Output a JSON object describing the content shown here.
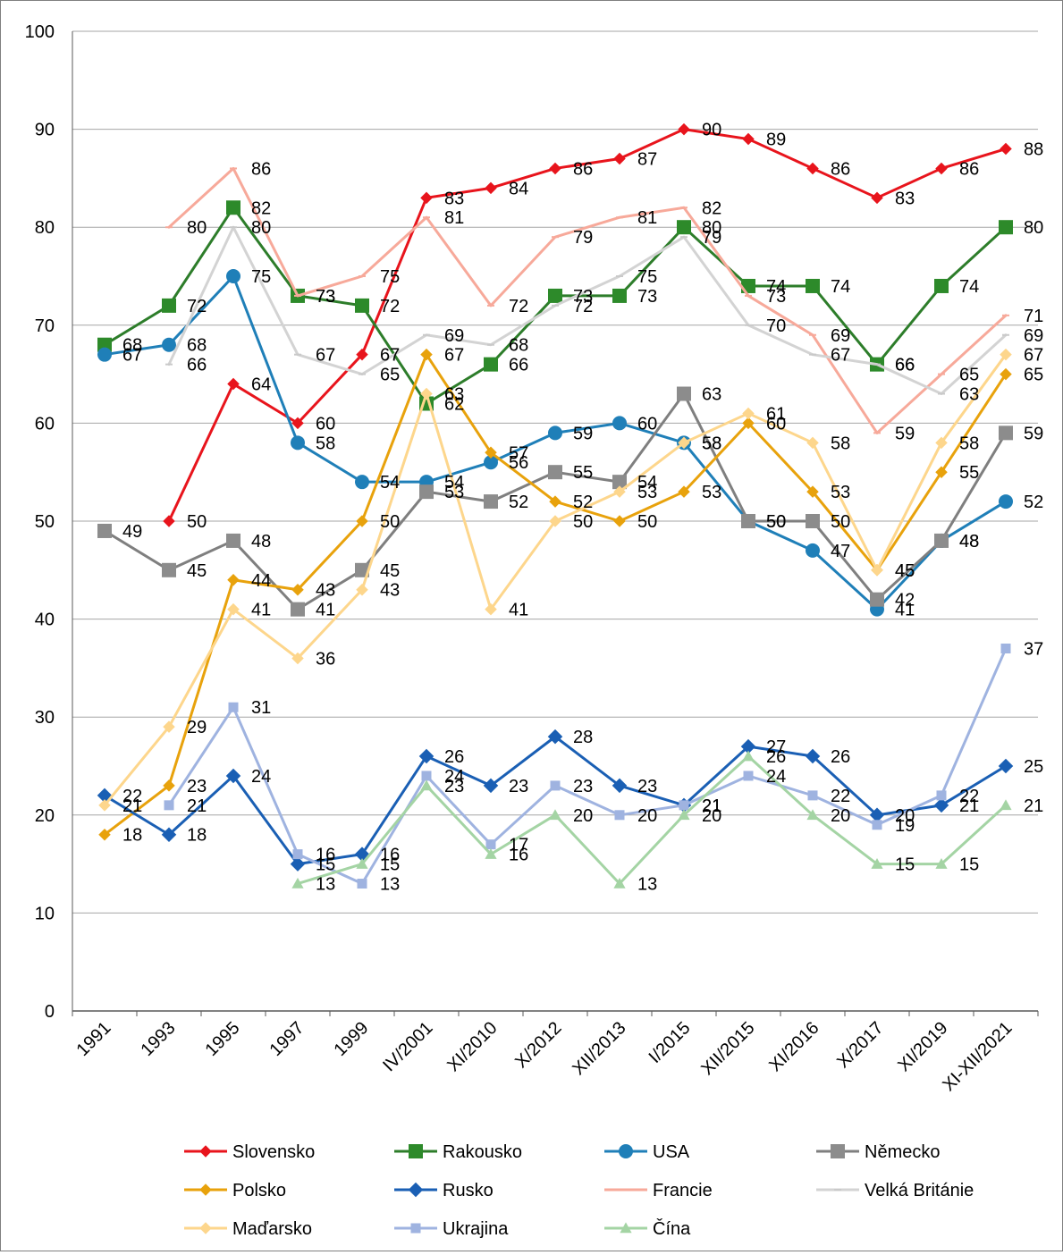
{
  "chart_data": {
    "type": "line",
    "title": "",
    "xlabel": "",
    "ylabel": "",
    "ylim": [
      0,
      100
    ],
    "yticks": [
      0,
      10,
      20,
      30,
      40,
      50,
      60,
      70,
      80,
      90,
      100
    ],
    "grid": "horizontal",
    "legend": "bottom",
    "categories": [
      "1991",
      "1993",
      "1995",
      "1997",
      "1999",
      "IV/2001",
      "XI/2010",
      "X/2012",
      "XII/2013",
      "I/2015",
      "XII/2015",
      "XI/2016",
      "X/2017",
      "XI/2019",
      "XI-XII/2021"
    ],
    "series": [
      {
        "name": "Slovensko",
        "color": "#e8141c",
        "marker": "diamond",
        "marker_color": "#e8141c",
        "marker_size": 9,
        "line_width": 3,
        "values": [
          null,
          50,
          64,
          60,
          67,
          83,
          84,
          86,
          87,
          90,
          89,
          86,
          83,
          86,
          88
        ],
        "labels": [
          null,
          "50",
          "64",
          "60",
          "67",
          "83",
          "84",
          "86",
          "87",
          "90",
          "89",
          "86",
          "83",
          "86",
          "88"
        ]
      },
      {
        "name": "Rakousko",
        "color": "#2d7d2a",
        "marker": "square",
        "marker_color": "#2d8a2a",
        "marker_size": 16,
        "line_width": 3,
        "values": [
          68,
          72,
          82,
          73,
          72,
          62,
          66,
          73,
          73,
          80,
          74,
          74,
          66,
          74,
          80
        ],
        "labels": [
          "68",
          "72",
          "82",
          "73",
          "72",
          "62",
          "66",
          "73",
          "73",
          "80",
          "74",
          "74",
          "66",
          "74",
          "80"
        ]
      },
      {
        "name": "USA",
        "color": "#1f7fb8",
        "marker": "circle",
        "marker_color": "#1f7fb8",
        "marker_size": 16,
        "line_width": 3,
        "values": [
          67,
          68,
          75,
          58,
          54,
          54,
          56,
          59,
          60,
          58,
          50,
          47,
          41,
          48,
          52
        ],
        "labels": [
          "67",
          "68",
          "75",
          "58",
          "54",
          "54",
          "56",
          "59",
          "60",
          "58",
          "50",
          "47",
          "41",
          "48",
          "52"
        ]
      },
      {
        "name": "Německo",
        "color": "#7f7f7f",
        "marker": "square",
        "marker_color": "#8c8c8c",
        "marker_size": 16,
        "line_width": 3,
        "values": [
          49,
          45,
          48,
          41,
          45,
          53,
          52,
          55,
          54,
          63,
          50,
          50,
          42,
          48,
          59
        ],
        "labels": [
          "49",
          "45",
          "48",
          "41",
          "45",
          "53",
          "52",
          "55",
          "54",
          "63",
          "50",
          "50",
          "42",
          "48",
          "59"
        ]
      },
      {
        "name": "Polsko",
        "color": "#e8a20c",
        "marker": "diamond",
        "marker_color": "#e8a20c",
        "marker_size": 9,
        "line_width": 3,
        "values": [
          18,
          23,
          44,
          43,
          50,
          67,
          57,
          52,
          50,
          53,
          60,
          53,
          45,
          55,
          65
        ],
        "labels": [
          "18",
          "23",
          "44",
          "43",
          "50",
          "67",
          "57",
          "52",
          "50",
          "53",
          "60",
          "53",
          "45",
          "55",
          "65"
        ]
      },
      {
        "name": "Rusko",
        "color": "#1a5fb4",
        "marker": "diamond",
        "marker_color": "#1a5fb4",
        "marker_size": 11,
        "line_width": 3,
        "values": [
          22,
          18,
          24,
          15,
          16,
          26,
          23,
          28,
          23,
          21,
          27,
          26,
          20,
          21,
          25
        ],
        "labels": [
          "22",
          "18",
          "24",
          "15",
          "16",
          "26",
          "23",
          "28",
          "23",
          "21",
          "27",
          "26",
          "20",
          "21",
          "25"
        ]
      },
      {
        "name": "Francie",
        "color": "#f7a99a",
        "marker": "dash",
        "marker_color": "#f7a99a",
        "marker_size": 8,
        "line_width": 3,
        "values": [
          null,
          80,
          86,
          73,
          75,
          81,
          72,
          79,
          81,
          82,
          73,
          69,
          59,
          65,
          71
        ],
        "labels": [
          null,
          "80",
          "86",
          "73",
          "75",
          "81",
          "72",
          "79",
          "81",
          "82",
          "73",
          "69",
          "59",
          "65",
          "71"
        ]
      },
      {
        "name": "Velká Británie",
        "color": "#d3d3d3",
        "marker": "dash",
        "marker_color": "#c9c9c9",
        "marker_size": 8,
        "line_width": 3,
        "values": [
          null,
          66,
          80,
          67,
          65,
          69,
          68,
          72,
          75,
          79,
          70,
          67,
          66,
          63,
          69
        ],
        "labels": [
          null,
          "66",
          "80",
          "67",
          "65",
          "69",
          "68",
          "72",
          "75",
          "79",
          "70",
          "67",
          "66",
          "63",
          "69"
        ]
      },
      {
        "name": "Maďarsko",
        "color": "#fdd68c",
        "marker": "diamond",
        "marker_color": "#fdd68c",
        "marker_size": 9,
        "line_width": 3,
        "values": [
          21,
          29,
          41,
          36,
          43,
          63,
          41,
          50,
          53,
          58,
          61,
          58,
          45,
          58,
          67
        ],
        "labels": [
          "21",
          "29",
          "41",
          "36",
          "43",
          "63",
          "41",
          "50",
          "53",
          "58",
          "61",
          "58",
          "45",
          "58",
          "67"
        ]
      },
      {
        "name": "Ukrajina",
        "color": "#9fb3e0",
        "marker": "square",
        "marker_color": "#9fb3e0",
        "marker_size": 11,
        "line_width": 3,
        "values": [
          null,
          21,
          31,
          16,
          13,
          24,
          17,
          23,
          20,
          21,
          24,
          22,
          19,
          22,
          37
        ],
        "labels": [
          null,
          "21",
          "31",
          "16",
          "13",
          "24",
          "17",
          "23",
          "20",
          "21",
          "24",
          "22",
          "19",
          "22",
          "37"
        ]
      },
      {
        "name": "Čína",
        "color": "#a4d4a4",
        "marker": "triangle",
        "marker_color": "#a4d4a4",
        "marker_size": 11,
        "line_width": 3,
        "values": [
          null,
          null,
          null,
          13,
          15,
          23,
          16,
          20,
          13,
          20,
          26,
          20,
          15,
          15,
          21
        ],
        "labels": [
          null,
          null,
          null,
          "13",
          "15",
          "23",
          "16",
          "20",
          "13",
          "20",
          "26",
          "20",
          "15",
          "15",
          "21"
        ]
      }
    ]
  }
}
